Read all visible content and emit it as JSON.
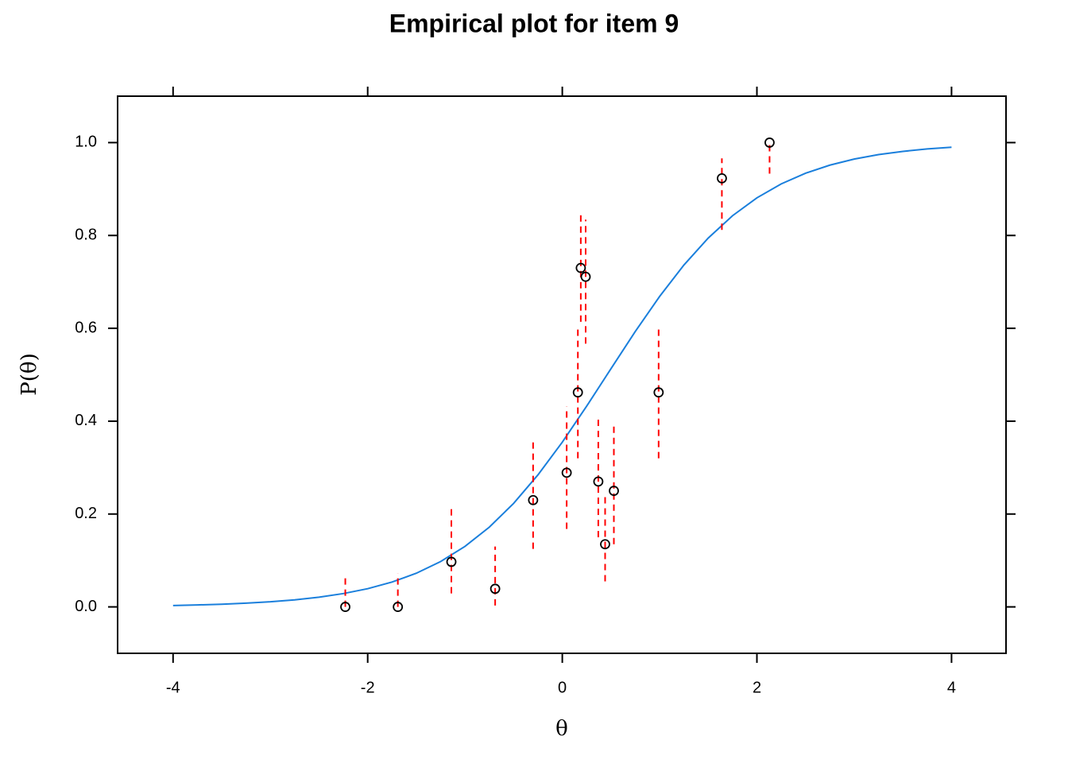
{
  "chart_data": {
    "type": "scatter",
    "title": "Empirical plot for item 9",
    "x_label": "θ",
    "y_label": "P(θ)",
    "xlim": [
      -4.57,
      4.56
    ],
    "ylim": [
      -0.1,
      1.1
    ],
    "xticks": [
      -4,
      -2,
      0,
      2,
      4
    ],
    "yticks": [
      {
        "value": 0,
        "label": "0.0"
      },
      0.2,
      0.4,
      0.6,
      0.8,
      {
        "value": 1,
        "label": "1.0"
      }
    ],
    "points": {
      "color": "#000000",
      "error_color": "#ff0000",
      "x": [
        -2.23,
        -1.69,
        -1.14,
        -0.69,
        -0.3,
        0.045,
        0.16,
        0.19,
        0.24,
        0.37,
        0.44,
        0.53,
        0.99,
        1.64,
        2.13
      ],
      "values": [
        0,
        0,
        0.097,
        0.039,
        0.23,
        0.289,
        0.462,
        0.73,
        0.711,
        0.27,
        0.135,
        0.25,
        0.462,
        0.923,
        1.0
      ],
      "lower": [
        0,
        0,
        0.029,
        0.003,
        0.125,
        0.168,
        0.32,
        0.614,
        0.567,
        0.15,
        0.055,
        0.135,
        0.32,
        0.812,
        0.933
      ],
      "upper": [
        0.067,
        0.072,
        0.212,
        0.13,
        0.36,
        0.432,
        0.605,
        0.848,
        0.834,
        0.412,
        0.238,
        0.391,
        0.607,
        0.966,
        1.0
      ]
    },
    "curve": {
      "color": "#1a7fdc",
      "x": [
        -4,
        -3.75,
        -3.5,
        -3.25,
        -3,
        -2.75,
        -2.5,
        -2.25,
        -2,
        -1.75,
        -1.5,
        -1.25,
        -1,
        -0.75,
        -0.5,
        -0.25,
        0,
        0.25,
        0.5,
        0.75,
        1,
        1.25,
        1.5,
        1.75,
        2,
        2.25,
        2.5,
        2.75,
        3,
        3.25,
        3.5,
        3.75,
        4
      ],
      "values": [
        0.003,
        0.0042,
        0.0058,
        0.008,
        0.011,
        0.0152,
        0.0209,
        0.0287,
        0.0392,
        0.0535,
        0.0725,
        0.0977,
        0.1303,
        0.1718,
        0.223,
        0.2844,
        0.3548,
        0.4322,
        0.513,
        0.5932,
        0.6686,
        0.7364,
        0.7945,
        0.8426,
        0.881,
        0.9111,
        0.9341,
        0.9515,
        0.9645,
        0.9741,
        0.9811,
        0.9863,
        0.9901
      ]
    }
  }
}
